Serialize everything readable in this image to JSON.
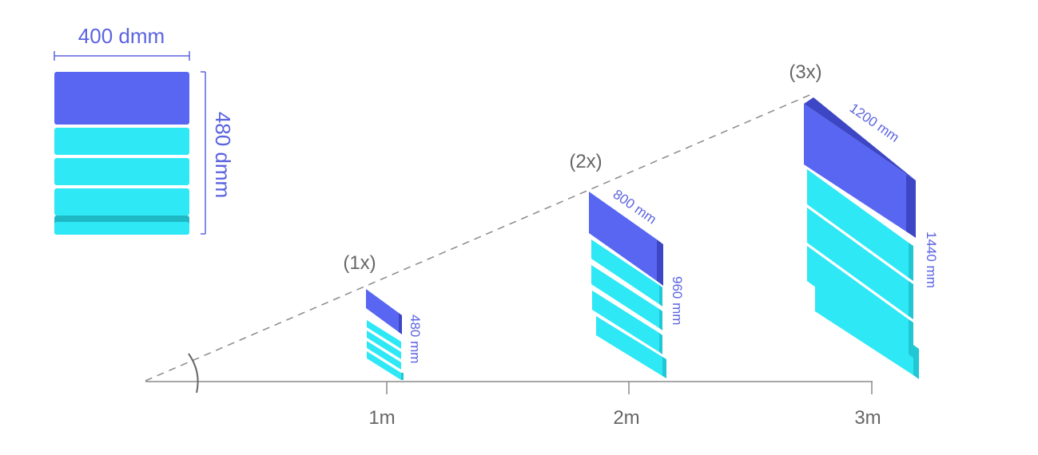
{
  "colors": {
    "header_block": "#5866f2",
    "header_block_side": "#3d46c4",
    "row_block": "#2ee8f5",
    "row_block_side": "#21c7d3",
    "row_shadow": "#1fb9c6",
    "dimension_text": "#5b63e0",
    "axis": "#8a8a8a",
    "label_text": "#666666"
  },
  "reference_card": {
    "width_label": "400 dmm",
    "height_label": "480 dmm",
    "header_icon": "header-block",
    "row_count": 3
  },
  "axis": {
    "ticks": [
      {
        "label": "1m"
      },
      {
        "label": "2m"
      },
      {
        "label": "3m"
      }
    ],
    "angle_icon": "angle-arc-icon"
  },
  "scaled_cards": [
    {
      "scale_label": "(1x)",
      "width_label": "",
      "height_label": "480 mm"
    },
    {
      "scale_label": "(2x)",
      "width_label": "800 mm",
      "height_label": "960 mm"
    },
    {
      "scale_label": "(3x)",
      "width_label": "1200 mm",
      "height_label": "1440 mm"
    }
  ]
}
